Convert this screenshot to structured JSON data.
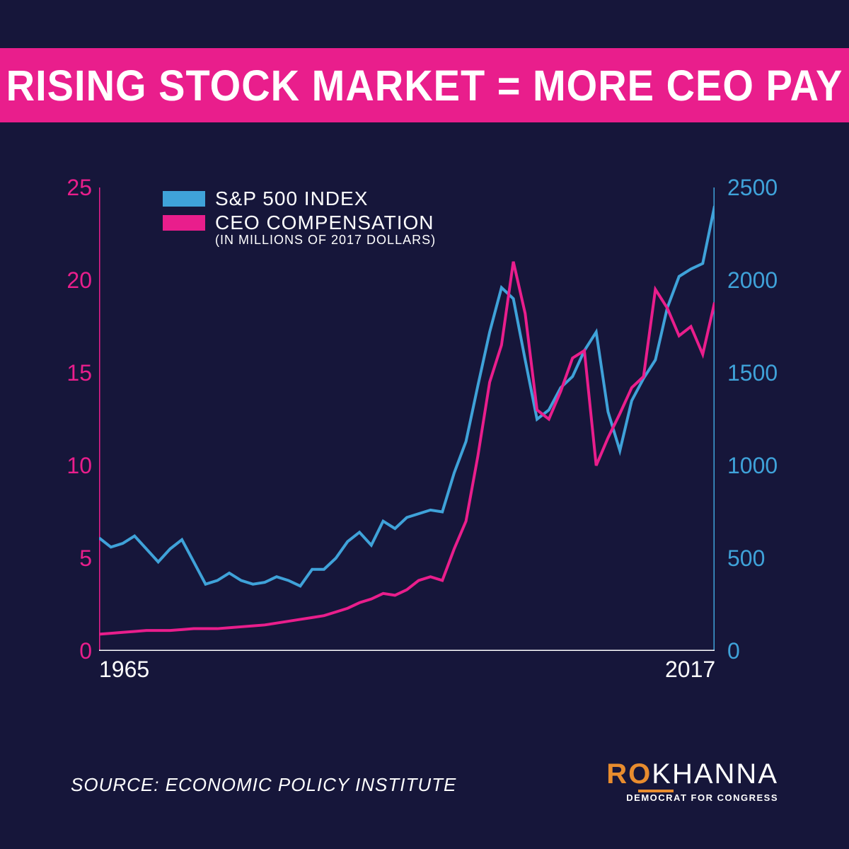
{
  "colors": {
    "background": "#16163a",
    "banner": "#e91e8c",
    "series_sp500": "#3fa2d9",
    "series_ceo": "#e91e8c",
    "axis_left": "#e91e8c",
    "axis_right": "#3fa2d9",
    "axis_x": "#ffffff",
    "text": "#ffffff",
    "logo_accent": "#e88c2e"
  },
  "title": {
    "text": "RISING STOCK MARKET = MORE CEO PAY",
    "fontsize": 56
  },
  "chart": {
    "type": "line",
    "x_range": [
      1965,
      2017
    ],
    "x_ticks": [
      1965,
      2017
    ],
    "left_axis": {
      "label_series": "CEO COMPENSATION",
      "sublabel": "(IN MILLIONS OF 2017 DOLLARS)",
      "ylim": [
        0,
        25
      ],
      "ticks": [
        0,
        5,
        10,
        15,
        20,
        25
      ],
      "color": "#e91e8c"
    },
    "right_axis": {
      "label_series": "S&P 500 INDEX",
      "ylim": [
        0,
        2500
      ],
      "ticks": [
        0,
        500,
        1000,
        1500,
        2000,
        2500
      ],
      "color": "#3fa2d9"
    },
    "line_width": 4,
    "series": {
      "sp500": {
        "color": "#3fa2d9",
        "axis": "right",
        "x": [
          1965,
          1966,
          1967,
          1968,
          1969,
          1970,
          1971,
          1972,
          1973,
          1974,
          1975,
          1976,
          1977,
          1978,
          1979,
          1980,
          1981,
          1982,
          1983,
          1984,
          1985,
          1986,
          1987,
          1988,
          1989,
          1990,
          1991,
          1992,
          1993,
          1994,
          1995,
          1996,
          1997,
          1998,
          1999,
          2000,
          2001,
          2002,
          2003,
          2004,
          2005,
          2006,
          2007,
          2008,
          2009,
          2010,
          2011,
          2012,
          2013,
          2014,
          2015,
          2016,
          2017
        ],
        "y": [
          610,
          560,
          580,
          620,
          550,
          480,
          550,
          600,
          480,
          360,
          380,
          420,
          380,
          360,
          370,
          400,
          380,
          350,
          440,
          440,
          500,
          590,
          640,
          570,
          700,
          660,
          720,
          740,
          760,
          750,
          960,
          1130,
          1430,
          1720,
          1960,
          1900,
          1570,
          1250,
          1300,
          1420,
          1480,
          1620,
          1720,
          1290,
          1080,
          1350,
          1470,
          1570,
          1850,
          2020,
          2060,
          2090,
          2400
        ]
      },
      "ceo": {
        "color": "#e91e8c",
        "axis": "left",
        "x": [
          1965,
          1966,
          1967,
          1968,
          1969,
          1970,
          1971,
          1972,
          1973,
          1974,
          1975,
          1976,
          1977,
          1978,
          1979,
          1980,
          1981,
          1982,
          1983,
          1984,
          1985,
          1986,
          1987,
          1988,
          1989,
          1990,
          1991,
          1992,
          1993,
          1994,
          1995,
          1996,
          1997,
          1998,
          1999,
          2000,
          2001,
          2002,
          2003,
          2004,
          2005,
          2006,
          2007,
          2008,
          2009,
          2010,
          2011,
          2012,
          2013,
          2014,
          2015,
          2016,
          2017
        ],
        "y": [
          0.9,
          0.95,
          1.0,
          1.05,
          1.1,
          1.1,
          1.1,
          1.15,
          1.2,
          1.2,
          1.2,
          1.25,
          1.3,
          1.35,
          1.4,
          1.5,
          1.6,
          1.7,
          1.8,
          1.9,
          2.1,
          2.3,
          2.6,
          2.8,
          3.1,
          3.0,
          3.3,
          3.8,
          4.0,
          3.8,
          5.5,
          7.0,
          10.5,
          14.5,
          16.5,
          21.0,
          18.2,
          13.0,
          12.5,
          14.0,
          15.8,
          16.2,
          10.0,
          11.5,
          12.8,
          14.2,
          14.8,
          19.5,
          18.5,
          17.0,
          17.5,
          16.0,
          18.8
        ]
      }
    }
  },
  "legend": {
    "items": [
      {
        "swatch_color": "#3fa2d9",
        "label": "S&P 500 INDEX"
      },
      {
        "swatch_color": "#e91e8c",
        "label": "CEO COMPENSATION",
        "sublabel": "(IN MILLIONS OF 2017 DOLLARS)"
      }
    ]
  },
  "source": "SOURCE: ECONOMIC POLICY INSTITUTE",
  "logo": {
    "ro": "RO",
    "khanna": "KHANNA",
    "sub": "DEMOCRAT FOR CONGRESS",
    "accent_color": "#e88c2e"
  }
}
